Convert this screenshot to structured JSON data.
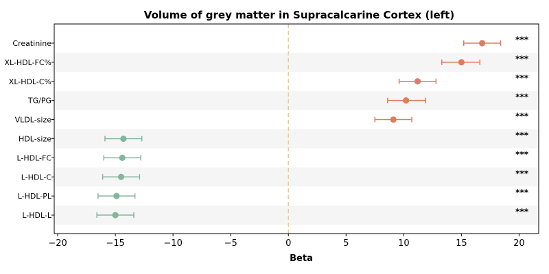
{
  "chart_data": {
    "type": "forest",
    "title": "Volume of grey matter in Supracalcarine Cortex (left)",
    "xlabel": "Beta",
    "ylabel": "",
    "xlim": [
      -20.3,
      21.7
    ],
    "xticks": [
      -20,
      -15,
      -10,
      -5,
      0,
      5,
      10,
      15,
      20
    ],
    "xtick_labels": [
      "−20",
      "−15",
      "−10",
      "−5",
      "0",
      "5",
      "10",
      "15",
      "20"
    ],
    "reference_line": 0,
    "significance_label": "***",
    "rows": [
      {
        "label": "Creatinine",
        "beta": 16.8,
        "ci_low": 15.2,
        "ci_high": 18.4,
        "direction": "positive"
      },
      {
        "label": "XL-HDL-FC%",
        "beta": 15.0,
        "ci_low": 13.3,
        "ci_high": 16.6,
        "direction": "positive"
      },
      {
        "label": "XL-HDL-C%",
        "beta": 11.2,
        "ci_low": 9.6,
        "ci_high": 12.8,
        "direction": "positive"
      },
      {
        "label": "TG/PG",
        "beta": 10.2,
        "ci_low": 8.6,
        "ci_high": 11.9,
        "direction": "positive"
      },
      {
        "label": "VLDL-size",
        "beta": 9.1,
        "ci_low": 7.5,
        "ci_high": 10.7,
        "direction": "positive"
      },
      {
        "label": "HDL-size",
        "beta": -14.3,
        "ci_low": -15.9,
        "ci_high": -12.7,
        "direction": "negative"
      },
      {
        "label": "L-HDL-FC",
        "beta": -14.4,
        "ci_low": -16.0,
        "ci_high": -12.8,
        "direction": "negative"
      },
      {
        "label": "L-HDL-C",
        "beta": -14.5,
        "ci_low": -16.1,
        "ci_high": -12.9,
        "direction": "negative"
      },
      {
        "label": "L-HDL-PL",
        "beta": -14.9,
        "ci_low": -16.5,
        "ci_high": -13.3,
        "direction": "negative"
      },
      {
        "label": "L-HDL-L",
        "beta": -15.0,
        "ci_low": -16.6,
        "ci_high": -13.4,
        "direction": "negative"
      }
    ],
    "grid": false,
    "colors": {
      "positive": "#e07b5f",
      "negative": "#84b59d",
      "reference_line": "#f3c97a",
      "stripe": "#f5f5f5"
    }
  }
}
